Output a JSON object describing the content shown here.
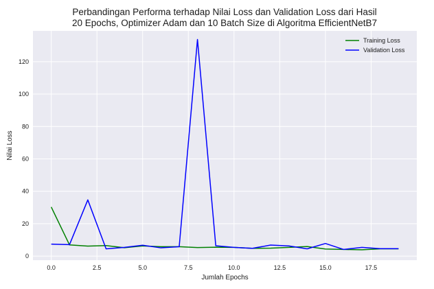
{
  "chart_data": {
    "type": "line",
    "title_lines": [
      "Perbandingan Performa terhadap Nilai Loss dan Validation Loss dari Hasil",
      "20 Epochs, Optimizer Adam dan 10 Batch Size di Algoritma EfficientNetB7"
    ],
    "xlabel": "Jumlah Epochs",
    "ylabel": "Nilai Loss",
    "xlim": [
      -1.0,
      20.0
    ],
    "ylim": [
      -2.5,
      139.0
    ],
    "xticks": [
      0.0,
      2.5,
      5.0,
      7.5,
      10.0,
      12.5,
      15.0,
      17.5
    ],
    "xtick_labels": [
      "0.0",
      "2.5",
      "5.0",
      "7.5",
      "10.0",
      "12.5",
      "15.0",
      "17.5"
    ],
    "yticks": [
      0,
      20,
      40,
      60,
      80,
      100,
      120
    ],
    "ytick_labels": [
      "0",
      "20",
      "40",
      "60",
      "80",
      "100",
      "120"
    ],
    "grid": true,
    "legend_position": "top-right",
    "x": [
      0,
      1,
      2,
      3,
      4,
      5,
      6,
      7,
      8,
      9,
      10,
      11,
      12,
      13,
      14,
      15,
      16,
      17,
      18,
      19
    ],
    "series": [
      {
        "name": "Training Loss",
        "color": "#008000",
        "values": [
          30.3,
          6.9,
          6.2,
          6.5,
          5.2,
          6.3,
          5.8,
          5.8,
          5.3,
          5.5,
          5.4,
          4.8,
          4.9,
          5.4,
          5.9,
          4.4,
          4.1,
          3.9,
          4.5,
          4.5
        ]
      },
      {
        "name": "Validation Loss",
        "color": "#0000ff",
        "values": [
          7.4,
          7.1,
          34.7,
          4.5,
          5.4,
          6.7,
          5.1,
          5.8,
          133.7,
          6.4,
          5.4,
          4.8,
          6.8,
          6.3,
          4.5,
          7.8,
          4.1,
          5.4,
          4.6,
          4.6
        ]
      }
    ]
  }
}
